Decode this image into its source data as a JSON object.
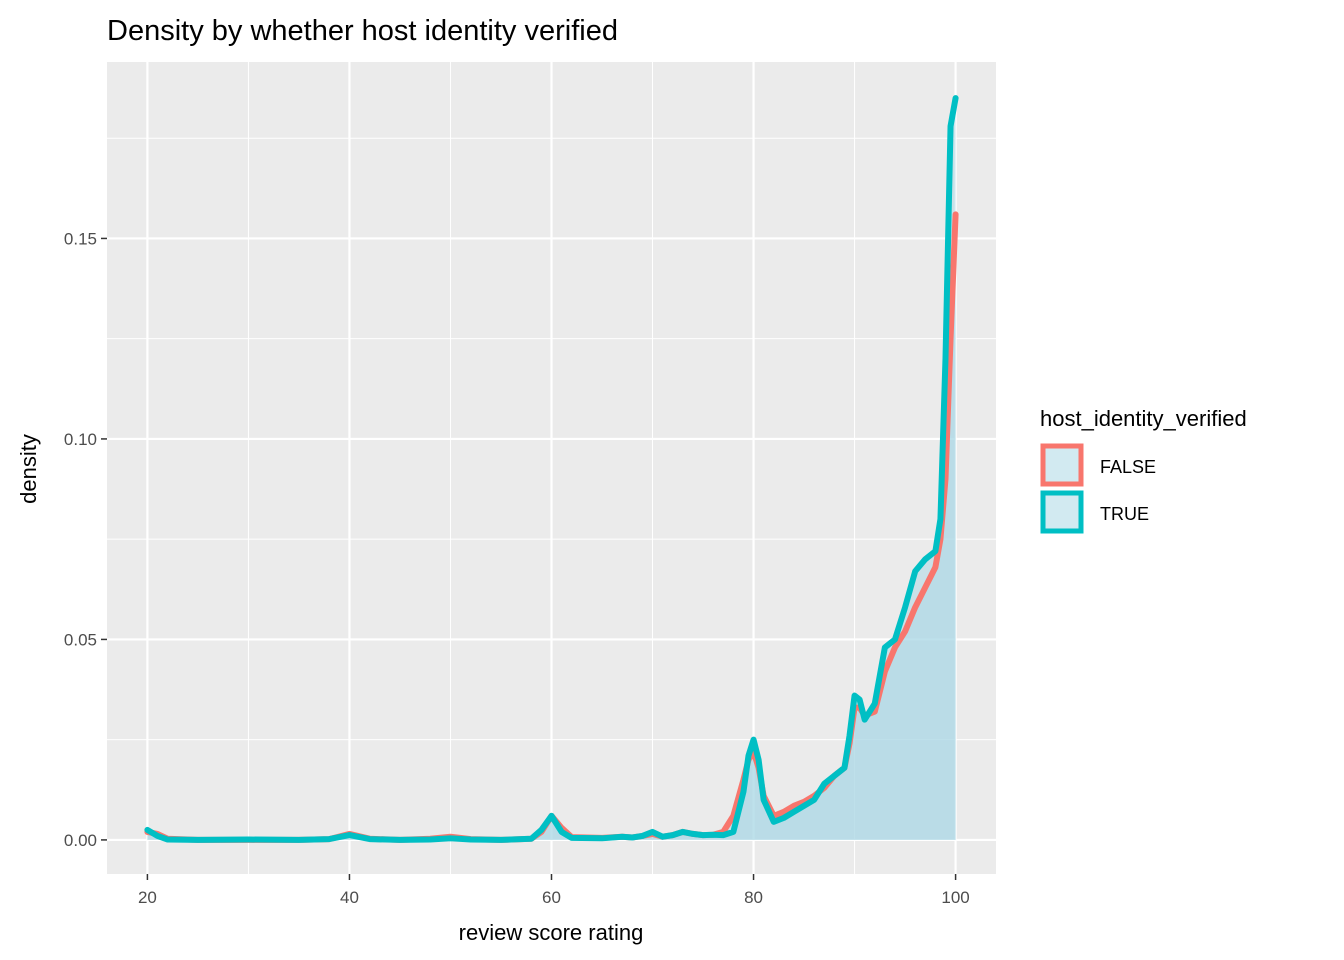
{
  "chart_data": {
    "type": "area",
    "title": "Density by whether host identity verified",
    "xlabel": "review score rating",
    "ylabel": "density",
    "xlim": [
      16,
      104
    ],
    "ylim": [
      -0.0085,
      0.194
    ],
    "x_ticks": [
      20,
      40,
      60,
      80,
      100
    ],
    "x_tick_labels": [
      "20",
      "40",
      "60",
      "80",
      "100"
    ],
    "y_ticks": [
      0.0,
      0.05,
      0.1,
      0.15
    ],
    "y_tick_labels": [
      "0.00",
      "0.05",
      "0.10",
      "0.15"
    ],
    "grid": true,
    "legend": {
      "title": "host_identity_verified",
      "placement": "right",
      "entries": [
        "FALSE",
        "TRUE"
      ]
    },
    "series": [
      {
        "name": "FALSE",
        "color": "#F8766D",
        "fill": "#ADD8E6",
        "x": [
          20,
          21,
          22,
          25,
          30,
          35,
          38,
          40,
          42,
          45,
          48,
          50,
          52,
          55,
          58,
          59,
          60,
          61,
          62,
          65,
          67,
          68,
          69,
          70,
          71,
          72,
          73,
          74,
          75,
          76,
          77,
          78,
          79,
          79.5,
          80,
          80.5,
          81,
          82,
          83,
          84,
          85,
          86,
          87,
          88,
          89,
          89.5,
          90,
          90.5,
          91,
          92,
          93,
          94,
          95,
          96,
          97,
          98,
          98.5,
          99,
          99.5,
          100
        ],
        "y": [
          0.002,
          0.0015,
          0.0003,
          0.0,
          0.0,
          0.0,
          0.0002,
          0.0015,
          0.0003,
          0.0,
          0.0003,
          0.0008,
          0.0002,
          0.0,
          0.0003,
          0.002,
          0.006,
          0.003,
          0.0007,
          0.0005,
          0.0008,
          0.0006,
          0.001,
          0.0015,
          0.0008,
          0.0012,
          0.002,
          0.0015,
          0.0012,
          0.0013,
          0.002,
          0.006,
          0.015,
          0.02,
          0.022,
          0.018,
          0.011,
          0.006,
          0.007,
          0.0085,
          0.0095,
          0.011,
          0.013,
          0.016,
          0.018,
          0.024,
          0.033,
          0.033,
          0.031,
          0.032,
          0.042,
          0.048,
          0.052,
          0.058,
          0.063,
          0.068,
          0.075,
          0.09,
          0.125,
          0.156
        ]
      },
      {
        "name": "TRUE",
        "color": "#00BFC4",
        "fill": "#ADD8E6",
        "x": [
          20,
          21,
          22,
          25,
          30,
          35,
          38,
          40,
          42,
          45,
          48,
          50,
          52,
          55,
          58,
          59,
          60,
          61,
          62,
          65,
          67,
          68,
          69,
          70,
          71,
          72,
          73,
          74,
          75,
          76,
          77,
          78,
          79,
          79.5,
          80,
          80.5,
          81,
          82,
          83,
          84,
          85,
          86,
          87,
          88,
          89,
          89.5,
          90,
          90.5,
          91,
          92,
          93,
          94,
          95,
          96,
          97,
          98,
          98.5,
          99,
          99.5,
          100
        ],
        "y": [
          0.0025,
          0.001,
          0.0001,
          0.0,
          0.0001,
          0.0,
          0.0002,
          0.0012,
          0.0002,
          0.0,
          0.0001,
          0.0004,
          0.0001,
          0.0,
          0.0003,
          0.0025,
          0.006,
          0.002,
          0.0005,
          0.0004,
          0.0008,
          0.0006,
          0.001,
          0.002,
          0.0008,
          0.0012,
          0.002,
          0.0015,
          0.0012,
          0.0013,
          0.0012,
          0.002,
          0.012,
          0.021,
          0.025,
          0.02,
          0.01,
          0.0045,
          0.0055,
          0.007,
          0.0085,
          0.01,
          0.014,
          0.016,
          0.018,
          0.026,
          0.036,
          0.035,
          0.03,
          0.034,
          0.048,
          0.05,
          0.058,
          0.067,
          0.07,
          0.072,
          0.08,
          0.12,
          0.178,
          0.185
        ]
      }
    ]
  }
}
